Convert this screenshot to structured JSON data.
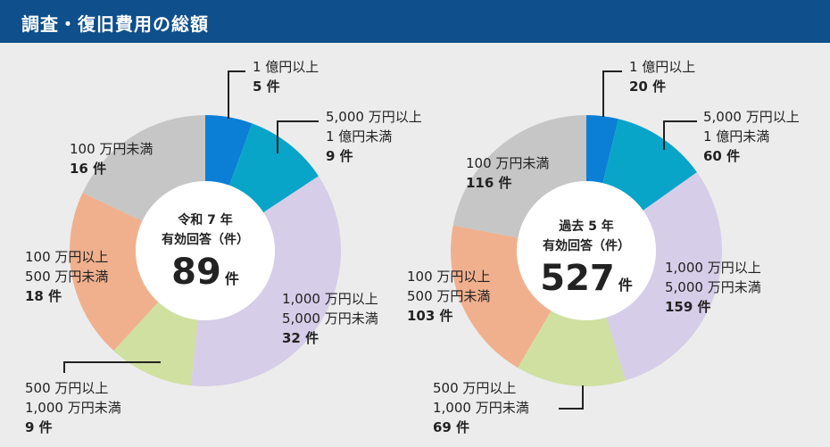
{
  "header": {
    "title": "調査・復旧費用の総額"
  },
  "chart_data": [
    {
      "type": "pie",
      "center_label": [
        "令和 7 年",
        "有効回答（件）"
      ],
      "total": "89",
      "total_unit": "件",
      "slices": [
        {
          "lines": [
            "1 億円以上"
          ],
          "count": "5 件",
          "value": 5,
          "color": "#0b7fd6"
        },
        {
          "lines": [
            "5,000 万円以上",
            "1 億円未満"
          ],
          "count": "9 件",
          "value": 9,
          "color": "#08a5c8"
        },
        {
          "lines": [
            "1,000 万円以上",
            "5,000 万円未満"
          ],
          "count": "32 件",
          "value": 32,
          "color": "#d6cde8"
        },
        {
          "lines": [
            "500 万円以上",
            "1,000 万円未満"
          ],
          "count": "9 件",
          "value": 9,
          "color": "#cfe0a0"
        },
        {
          "lines": [
            "100 万円以上",
            "500 万円未満"
          ],
          "count": "18 件",
          "value": 18,
          "color": "#f0b08e"
        },
        {
          "lines": [
            "100 万円未満"
          ],
          "count": "16 件",
          "value": 16,
          "color": "#c6c6c6"
        }
      ]
    },
    {
      "type": "pie",
      "center_label": [
        "過去 5 年",
        "有効回答（件）"
      ],
      "total": "527",
      "total_unit": "件",
      "slices": [
        {
          "lines": [
            "1 億円以上"
          ],
          "count": "20 件",
          "value": 20,
          "color": "#0b7fd6"
        },
        {
          "lines": [
            "5,000 万円以上",
            "1 億円未満"
          ],
          "count": "60 件",
          "value": 60,
          "color": "#08a5c8"
        },
        {
          "lines": [
            "1,000 万円以上",
            "5,000 万円未満"
          ],
          "count": "159 件",
          "value": 159,
          "color": "#d6cde8"
        },
        {
          "lines": [
            "500 万円以上",
            "1,000 万円未満"
          ],
          "count": "69 件",
          "value": 69,
          "color": "#cfe0a0"
        },
        {
          "lines": [
            "100 万円以上",
            "500 万円未満"
          ],
          "count": "103 件",
          "value": 103,
          "color": "#f0b08e"
        },
        {
          "lines": [
            "100 万円未満"
          ],
          "count": "116 件",
          "value": 116,
          "color": "#c6c6c6"
        }
      ]
    }
  ]
}
